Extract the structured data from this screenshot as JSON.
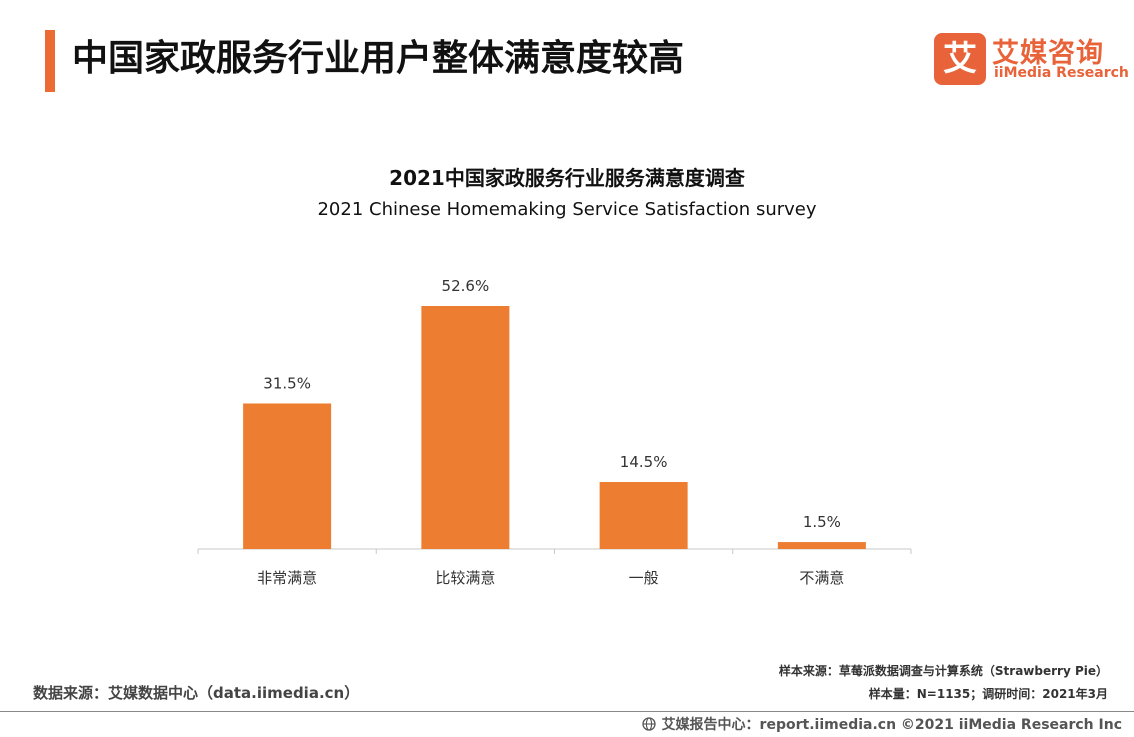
{
  "header": {
    "title": "中国家政服务行业用户整体满意度较高",
    "logo_mark": "艾",
    "logo_cn": "艾媒咨询",
    "logo_en": "iiMedia Research"
  },
  "colors": {
    "accent": "#ec6b35",
    "bar": "#ed7d31",
    "axis": "#c8c8c8"
  },
  "chart_data": {
    "type": "bar",
    "title": "2021中国家政服务行业服务满意度调查",
    "subtitle": "2021 Chinese Homemaking Service Satisfaction survey",
    "categories": [
      "非常满意",
      "比较满意",
      "一般",
      "不满意"
    ],
    "values": [
      31.5,
      52.6,
      14.5,
      1.5
    ],
    "value_labels": [
      "31.5%",
      "52.6%",
      "14.5%",
      "1.5%"
    ],
    "ylim": [
      0,
      60
    ],
    "grid": false,
    "legend": "none"
  },
  "source": {
    "left": "数据来源：艾媒数据中心（data.iimedia.cn）"
  },
  "notes": {
    "sample_source": "样本来源：草莓派数据调查与计算系统（Strawberry Pie）",
    "sample_size": "样本量：N=1135；调研时间：2021年3月"
  },
  "footer": {
    "text": "艾媒报告中心：report.iimedia.cn  ©2021  iiMedia Research  Inc",
    "icon": "globe-icon"
  }
}
